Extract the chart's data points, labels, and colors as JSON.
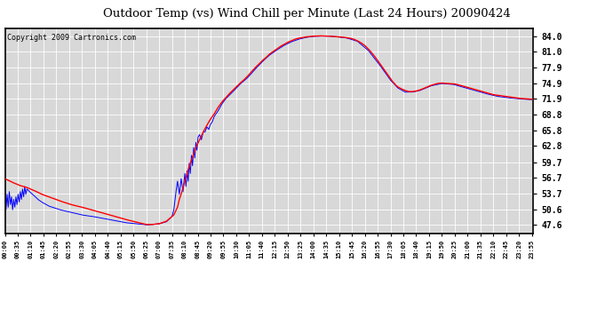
{
  "title": "Outdoor Temp (vs) Wind Chill per Minute (Last 24 Hours) 20090424",
  "copyright": "Copyright 2009 Cartronics.com",
  "yticks": [
    47.6,
    50.6,
    53.7,
    56.7,
    59.7,
    62.8,
    65.8,
    68.8,
    71.9,
    74.9,
    77.9,
    81.0,
    84.0
  ],
  "ymin": 46.0,
  "ymax": 85.5,
  "bg_color": "#ffffff",
  "plot_bg_color": "#d8d8d8",
  "grid_color": "#ffffff",
  "line_color_red": "#ff0000",
  "line_color_blue": "#0000ff",
  "title_color": "#000000",
  "border_color": "#000000",
  "xtick_step": 35,
  "n_minutes": 1440
}
